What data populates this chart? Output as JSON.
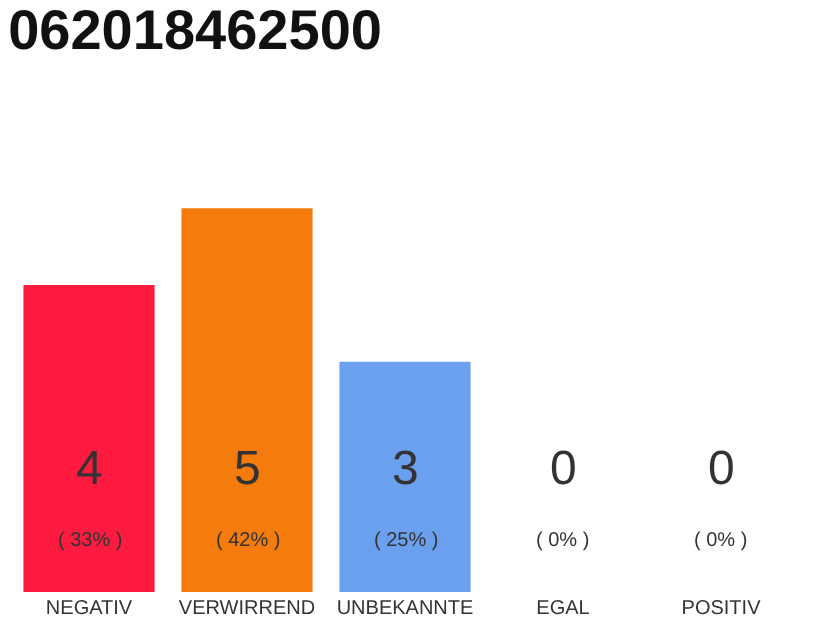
{
  "chart_data": {
    "type": "bar",
    "title": "062018462500",
    "categories": [
      "NEGATIV",
      "VERWIRREND",
      "UNBEKANNTE",
      "EGAL",
      "POSITIV"
    ],
    "values": [
      4,
      5,
      3,
      0,
      0
    ],
    "colors": [
      "#ff1a40",
      "#f57c0c",
      "#6aa0ee",
      "#9e9e9e",
      "#9e9e9e"
    ],
    "value_labels": [
      "4\n( 33% )",
      "5\n( 42% )",
      "3\n( 25% )",
      "0\n( 0% )",
      "0\n( 0% )"
    ],
    "legend": false
  }
}
